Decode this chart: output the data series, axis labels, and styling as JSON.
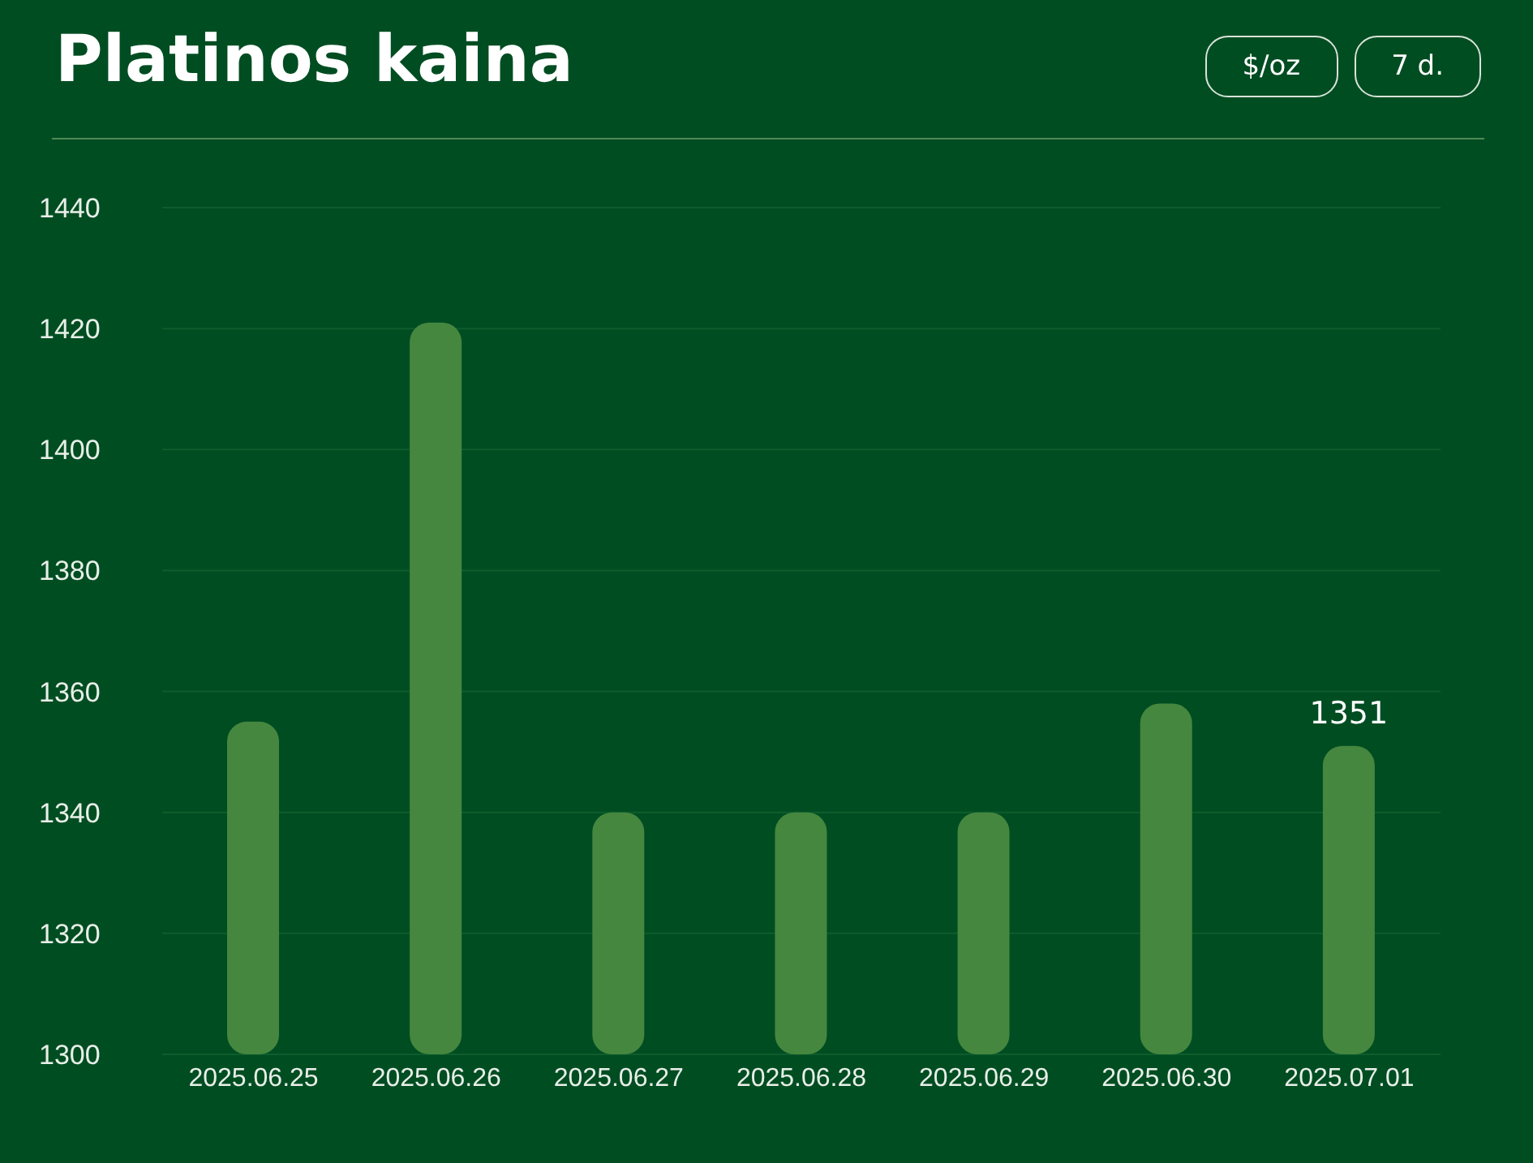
{
  "chart_data": {
    "type": "bar",
    "title": "Platinos kaina",
    "annotations": [
      "$/oz",
      "7 d."
    ],
    "categories": [
      "2025.06.25",
      "2025.06.26",
      "2025.06.27",
      "2025.06.28",
      "2025.06.29",
      "2025.06.30",
      "2025.07.01"
    ],
    "values": [
      1355,
      1421,
      1340,
      1340,
      1340,
      1358,
      1351
    ],
    "value_labels": [
      null,
      null,
      null,
      null,
      null,
      null,
      "1351"
    ],
    "color": "#45873f",
    "ylim": [
      1300,
      1440
    ],
    "yticks": [
      1300,
      1320,
      1340,
      1360,
      1380,
      1400,
      1420,
      1440
    ],
    "grid": "y",
    "legend": false
  }
}
